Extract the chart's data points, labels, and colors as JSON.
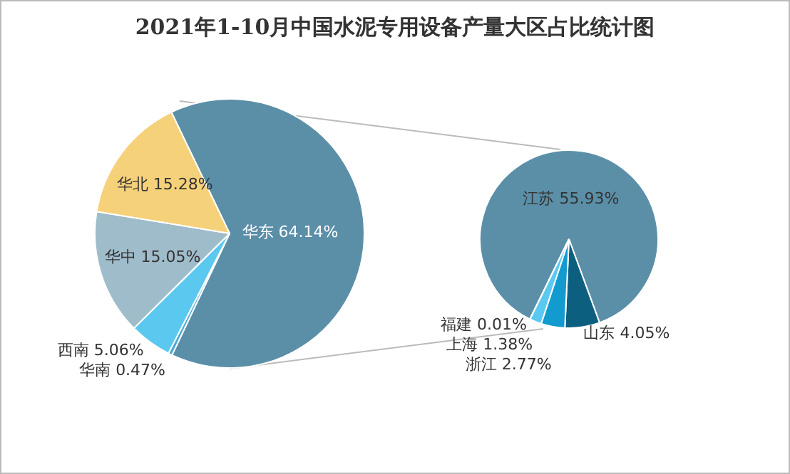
{
  "chart_data": [
    {
      "type": "pie",
      "title": "2021年1-10月中国水泥专用设备产量大区占比统计图",
      "categories": [
        "华东",
        "华南",
        "西南",
        "华中",
        "华北"
      ],
      "values": [
        64.14,
        0.47,
        5.06,
        15.05,
        15.28
      ],
      "colors": [
        "#5b8fa8",
        "#4aaad6",
        "#5bc8f0",
        "#9fbccb",
        "#f5d17a"
      ],
      "value_labels": [
        "64.14%",
        "0.47%",
        "5.06%",
        "15.05%",
        "15.28%"
      ]
    },
    {
      "type": "pie",
      "categories": [
        "江苏",
        "山东",
        "浙江",
        "上海",
        "福建"
      ],
      "values": [
        55.93,
        4.05,
        2.77,
        1.38,
        0.01
      ],
      "colors": [
        "#5b8fa8",
        "#0d5f80",
        "#139bd0",
        "#5bc8f0",
        "#8ad0ee"
      ],
      "value_labels": [
        "55.93%",
        "4.05%",
        "2.77%",
        "1.38%",
        "0.01%"
      ]
    }
  ]
}
